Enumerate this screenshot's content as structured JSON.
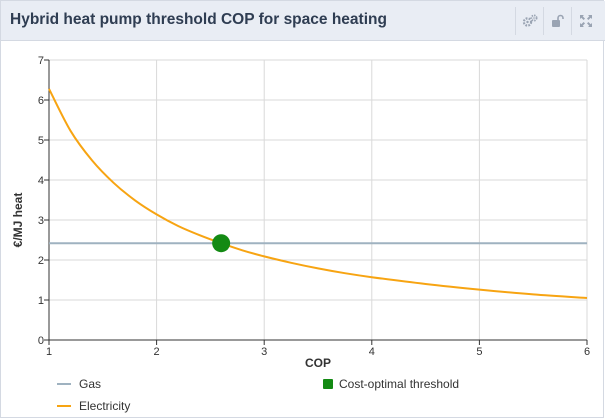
{
  "panel": {
    "title": "Hybrid heat pump threshold COP for space heating",
    "tools": [
      "settings-icon",
      "unlock-icon",
      "fullscreen-icon"
    ]
  },
  "colors": {
    "gas": "#9fb2c0",
    "electricity": "#f7a412",
    "threshold": "#138a13",
    "grid": "#d9d9d9",
    "axis": "#333333"
  },
  "chart_data": {
    "type": "line",
    "title": "Hybrid heat pump threshold COP for space heating",
    "xlabel": "COP",
    "ylabel": "€/MJ heat",
    "xlim": [
      1,
      6
    ],
    "ylim": [
      0,
      7
    ],
    "x_ticks": [
      "1",
      "2",
      "3",
      "4",
      "5",
      "6"
    ],
    "y_ticks": [
      "0",
      "1",
      "2",
      "3",
      "4",
      "5",
      "6",
      "7"
    ],
    "grid": true,
    "legend_position": "bottom",
    "series": [
      {
        "name": "Gas",
        "x": [
          1,
          6
        ],
        "y": [
          2.42,
          2.42
        ]
      },
      {
        "name": "Electricity",
        "x": [
          1.0,
          1.2,
          1.4,
          1.6,
          1.8,
          2.0,
          2.2,
          2.4,
          2.6,
          2.8,
          3.0,
          3.25,
          3.5,
          3.75,
          4.0,
          4.5,
          5.0,
          5.5,
          6.0
        ],
        "y": [
          6.28,
          5.23,
          4.49,
          3.93,
          3.49,
          3.14,
          2.85,
          2.62,
          2.42,
          2.24,
          2.09,
          1.93,
          1.79,
          1.67,
          1.57,
          1.4,
          1.26,
          1.14,
          1.05
        ]
      },
      {
        "name": "Cost-optimal threshold",
        "type": "scatter",
        "x": [
          2.6
        ],
        "y": [
          2.42
        ]
      }
    ]
  }
}
